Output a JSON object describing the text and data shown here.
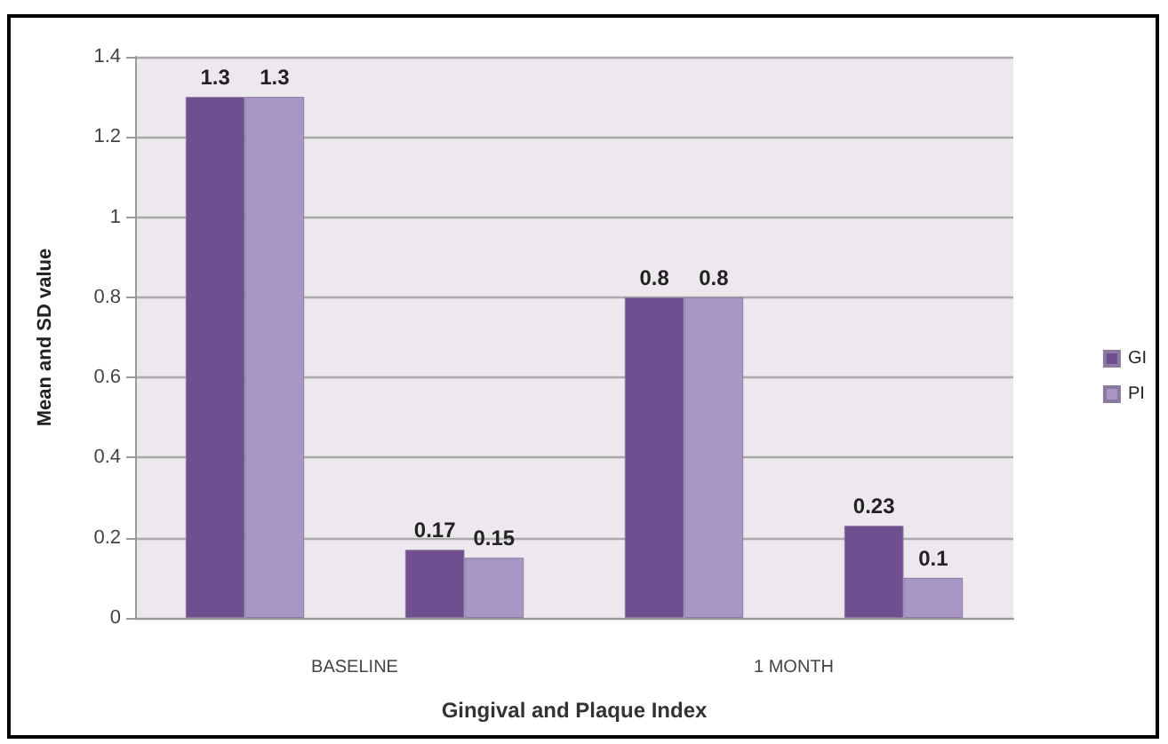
{
  "chart_data": {
    "type": "bar",
    "ylabel": "Mean and SD value",
    "xlabel": "Gingival and Plaque Index",
    "categories": [
      null,
      null,
      null,
      null
    ],
    "series": [
      {
        "name": "GI",
        "color": "#6f4f8f",
        "values": [
          1.3,
          0.17,
          0.8,
          0.23
        ]
      },
      {
        "name": "PI",
        "color": "#a897c4",
        "values": [
          1.3,
          0.15,
          0.8,
          0.1
        ]
      }
    ],
    "ylim": [
      0,
      1.4
    ],
    "yticks": [
      0,
      0.2,
      0.4,
      0.6,
      0.8,
      1,
      1.2,
      1.4
    ],
    "grid": "y",
    "legend": "right",
    "data_labels": true,
    "annotations": [
      "BASELINE",
      "1 MONTH"
    ]
  }
}
